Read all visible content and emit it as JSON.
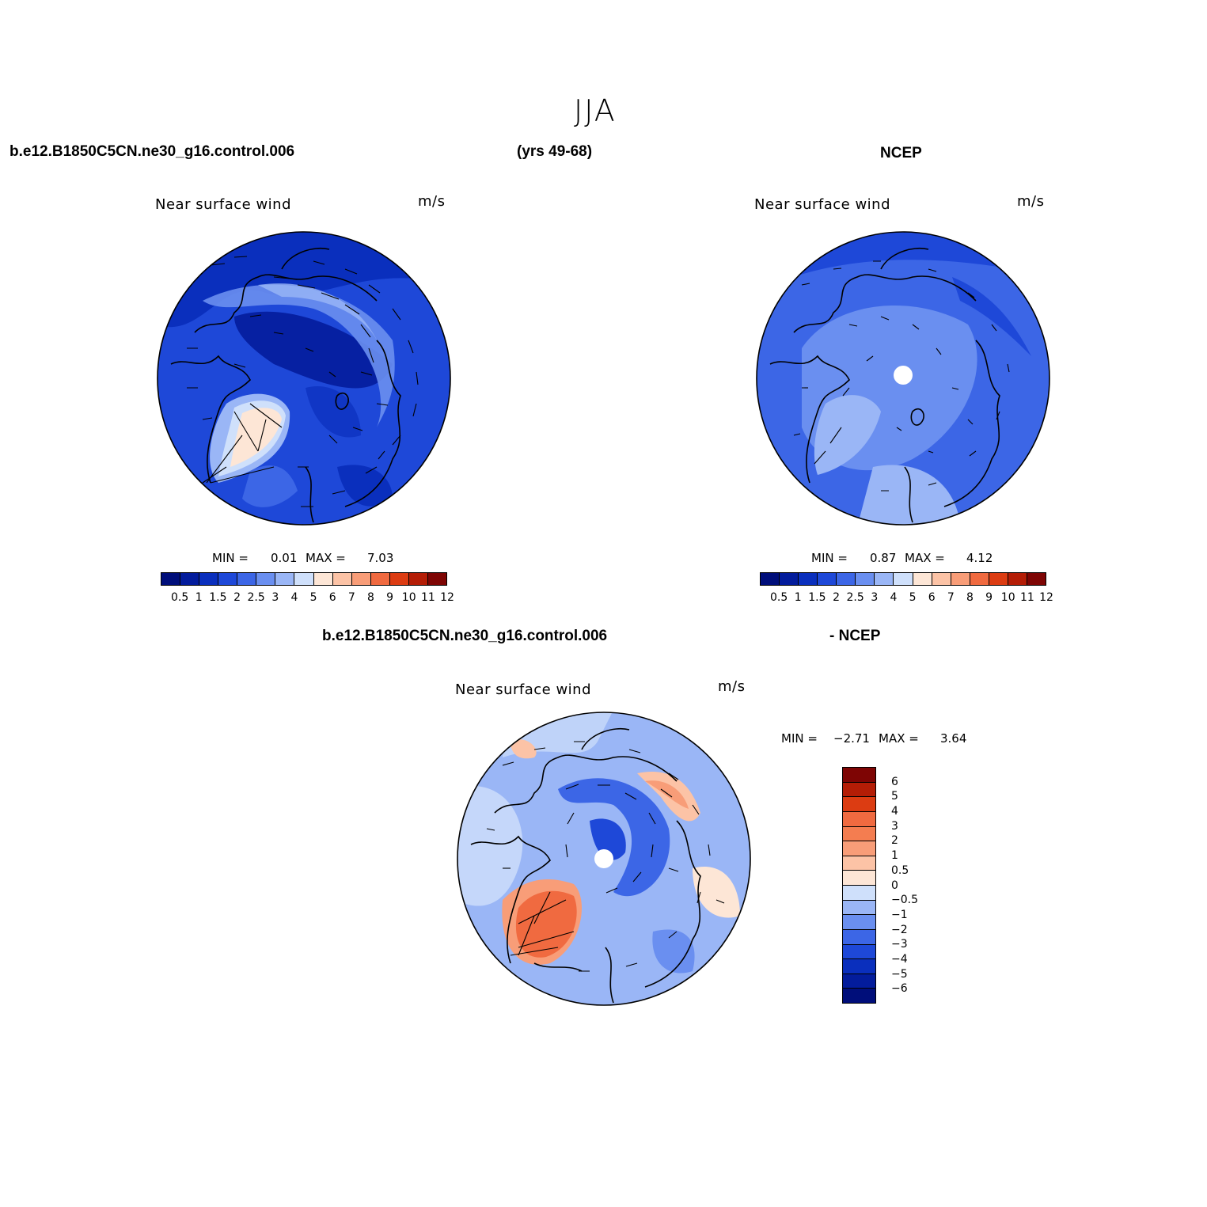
{
  "figure": {
    "title": "JJA",
    "case_name": "b.e12.B1850C5CN.ne30_g16.control.006",
    "years": "(yrs 49-68)",
    "obs_name": "NCEP",
    "diff_case": "b.e12.B1850C5CN.ne30_g16.control.006",
    "diff_obs": "- NCEP"
  },
  "panels": {
    "model": {
      "label": "Near surface wind",
      "units": "m/s",
      "min_label": "MIN =",
      "min_value": "0.01",
      "max_label": "MAX =",
      "max_value": "7.03"
    },
    "obs": {
      "label": "Near surface wind",
      "units": "m/s",
      "min_label": "MIN =",
      "min_value": "0.87",
      "max_label": "MAX =",
      "max_value": "4.12"
    },
    "diff": {
      "label": "Near surface wind",
      "units": "m/s",
      "min_label": "MIN =",
      "min_value": "−2.71",
      "max_label": "MAX =",
      "max_value": "3.64"
    }
  },
  "colorbar_main": {
    "labels": [
      "0.5",
      "1",
      "1.5",
      "2",
      "2.5",
      "3",
      "4",
      "5",
      "6",
      "7",
      "8",
      "9",
      "10",
      "11",
      "12"
    ],
    "colors": [
      "#000e7a",
      "#031c9c",
      "#0a2fbd",
      "#1e48d8",
      "#3c66e6",
      "#6a8ff0",
      "#9ab6f6",
      "#cfe0fb",
      "#fde6d6",
      "#fcc3a6",
      "#f89d78",
      "#f06a40",
      "#dc3c12",
      "#b41d06",
      "#7e0504"
    ]
  },
  "colorbar_diff": {
    "labels": [
      "6",
      "5",
      "4",
      "3",
      "2",
      "1",
      "0.5",
      "0",
      "−0.5",
      "−1",
      "−2",
      "−3",
      "−4",
      "−5",
      "−6"
    ],
    "colors": [
      "#7e0504",
      "#b41d06",
      "#dc3c12",
      "#f06a40",
      "#f47d50",
      "#f89d78",
      "#fcc3a6",
      "#fde6d6",
      "#cfe0fb",
      "#9ab6f6",
      "#6a8ff0",
      "#3c66e6",
      "#1e48d8",
      "#0a2fbd",
      "#031c9c",
      "#000e7a"
    ]
  }
}
